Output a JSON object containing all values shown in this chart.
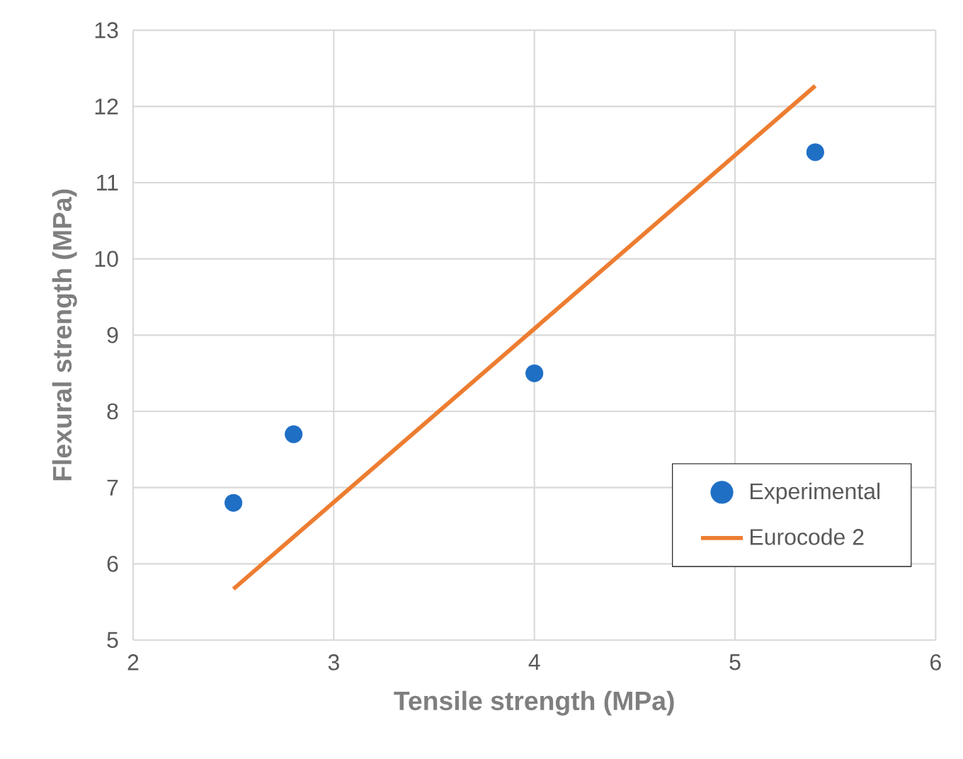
{
  "chart_data": {
    "type": "scatter",
    "xlabel": "Tensile strength (MPa)",
    "ylabel": "Flexural strength (MPa)",
    "xlim": [
      2,
      6
    ],
    "ylim": [
      5,
      13
    ],
    "xticks": [
      2,
      3,
      4,
      5,
      6
    ],
    "yticks": [
      5,
      6,
      7,
      8,
      9,
      10,
      11,
      12,
      13
    ],
    "grid": true,
    "legend": "bottom right",
    "series": [
      {
        "name": "Experimental",
        "color": "#1f6fc5",
        "marker": "circle",
        "x": [
          2.5,
          2.8,
          4,
          5.4
        ],
        "values": [
          6.8,
          7.7,
          8.5,
          11.4
        ]
      },
      {
        "name": "Eurocode 2",
        "type": "line",
        "color": "#ed7d31",
        "marker": "none",
        "line_style": "solid",
        "x": [
          2.5,
          5.4
        ],
        "values": [
          5.67,
          12.27
        ]
      }
    ]
  }
}
